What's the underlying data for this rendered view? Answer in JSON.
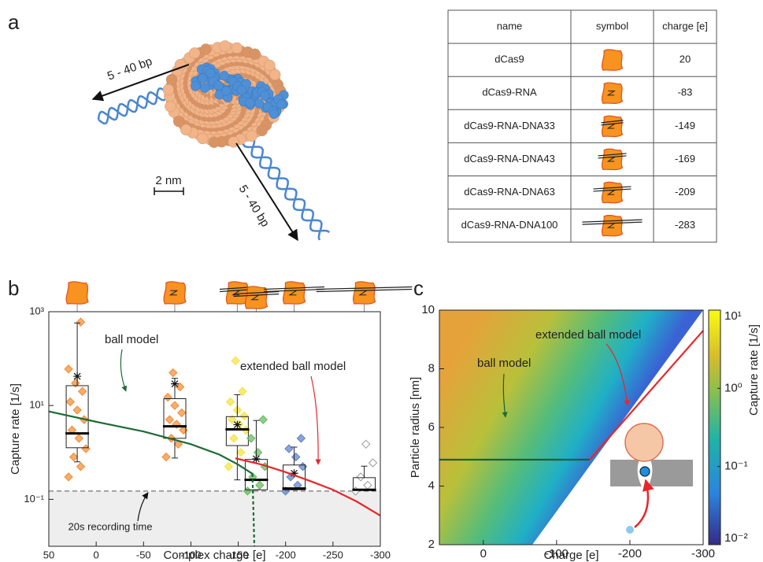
{
  "panel_labels": [
    "a",
    "b",
    "c"
  ],
  "structure": {
    "annotations": [
      "5 - 40 bp",
      "5 - 40 bp"
    ],
    "scale_bar": "2 nm"
  },
  "table": {
    "header": [
      "name",
      "symbol",
      "charge [e]"
    ],
    "rows": [
      [
        "dCas9",
        20
      ],
      [
        "dCas9-RNA",
        -83
      ],
      [
        "dCas9-RNA-DNA33",
        -149
      ],
      [
        "dCas9-RNA-DNA43",
        -169
      ],
      [
        "dCas9-RNA-DNA63",
        -209
      ],
      [
        "dCas9-RNA-DNA100",
        -283
      ]
    ]
  },
  "chart_data": [
    {
      "type": "box",
      "xlabel": "Complex charge [e]",
      "ylabel": "Capture rate [1/s]",
      "xlim": [
        50,
        -300
      ],
      "xticks": [
        50,
        0,
        -50,
        -100,
        -150,
        -200,
        -250,
        -300
      ],
      "ylim": [
        0.01,
        1000
      ],
      "ylog": true,
      "yticks": [
        {
          "value": 1000,
          "label": "10³"
        },
        {
          "value": 10,
          "label": "10¹"
        },
        {
          "value": 0.1,
          "label": "10⁻¹"
        }
      ],
      "x": [
        20,
        -83,
        -149,
        -169,
        -209,
        -283
      ],
      "point_colors": [
        "#f28a30",
        "#f28a30",
        "#f3e23c",
        "#62b95a",
        "#5b7fc4",
        "#9a9a9a"
      ],
      "whisker_low": [
        0.63,
        0.76,
        0.26,
        0.16,
        0.16,
        0.16
      ],
      "q1": [
        1.26,
        2.0,
        1.4,
        0.16,
        0.16,
        0.16
      ],
      "median": [
        2.55,
        3.6,
        3.1,
        0.26,
        0.17,
        0.16
      ],
      "q3": [
        26.5,
        14,
        5.8,
        0.71,
        0.54,
        0.29
      ],
      "whisker_high": [
        575,
        38,
        17,
        4.8,
        1.3,
        0.51
      ],
      "mean": [
        42,
        29,
        3.9,
        0.73,
        0.36,
        null
      ],
      "points": [
        [
          0.3,
          0.5,
          0.8,
          1.2,
          2,
          3,
          5,
          8,
          12,
          20,
          30,
          60,
          600
        ],
        [
          0.8,
          1.5,
          2,
          3,
          4,
          5,
          7,
          10,
          15,
          25,
          50
        ],
        [
          0.5,
          1,
          2,
          3,
          4,
          5,
          6,
          8,
          12,
          20,
          90
        ],
        [
          0.15,
          0.2,
          0.3,
          0.5,
          1,
          2,
          5
        ],
        [
          0.15,
          0.2,
          0.3,
          0.5,
          0.8,
          1.2,
          2
        ],
        [
          0.15,
          0.2,
          0.3,
          0.6,
          1.5
        ]
      ],
      "threshold": 0.15,
      "threshold_label": "20s recording time",
      "lines": [
        {
          "name": "ball model",
          "color": "#1e6b35",
          "x": [
            50,
            0,
            -50,
            -100,
            -130,
            -150,
            -165
          ],
          "values": [
            7.5,
            4.5,
            2.8,
            1.5,
            0.9,
            0.55,
            0.35
          ]
        },
        {
          "color": "#1e6b35",
          "dash": true,
          "x": [
            -165,
            -167
          ],
          "values": [
            0.35,
            0.01
          ]
        },
        {
          "name": "extended ball model",
          "color": "#e8262a",
          "x": [
            -147,
            -175,
            -200,
            -225,
            -250,
            -275,
            -300
          ],
          "values": [
            0.75,
            0.55,
            0.38,
            0.25,
            0.16,
            0.09,
            0.045
          ]
        }
      ]
    },
    {
      "type": "heatmap",
      "xlabel": "Charge [e]",
      "ylabel": "Particle radius [nm]",
      "xlim": [
        60,
        -300
      ],
      "xticks": [
        0,
        -100,
        -200,
        -300
      ],
      "ylim": [
        2,
        10
      ],
      "yticks": [
        2,
        4,
        6,
        8,
        10
      ],
      "colorbar": {
        "label": "Capture rate [1/s]",
        "lim": [
          0.01,
          10
        ],
        "log": true,
        "ticks": [
          {
            "value": 10,
            "label": "10¹"
          },
          {
            "value": 1,
            "label": "10⁰"
          },
          {
            "value": 0.1,
            "label": "10⁻¹"
          },
          {
            "value": 0.01,
            "label": "10⁻²"
          }
        ]
      },
      "lines": [
        {
          "name": "ball model",
          "color": "#1e5e32",
          "x": [
            60,
            -145
          ],
          "values": [
            4.9,
            4.9
          ]
        },
        {
          "name": "extended ball model",
          "color": "#e8262a",
          "x": [
            -145,
            -300
          ],
          "values": [
            4.9,
            9.3
          ]
        }
      ]
    }
  ]
}
